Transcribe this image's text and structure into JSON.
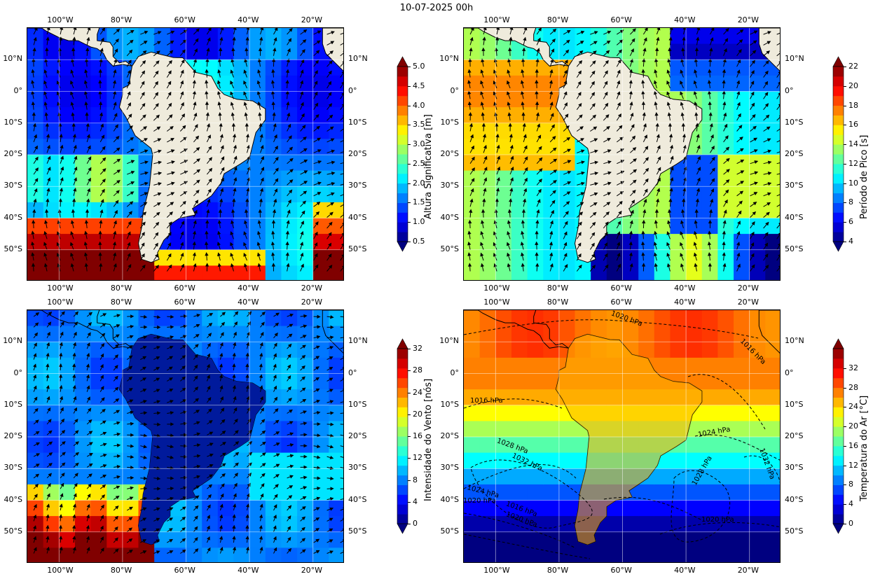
{
  "title": "10-07-2025 00h",
  "lon_ticks": [
    "100°W",
    "80°W",
    "60°W",
    "40°W",
    "20°W"
  ],
  "lat_ticks": [
    "10°N",
    "0°",
    "10°S",
    "20°S",
    "30°S",
    "40°S",
    "50°S"
  ],
  "panels": [
    {
      "id": "hs",
      "variable": "Altura Significativa [m]",
      "colorbar_ticks": [
        "0.5",
        "1.0",
        "1.5",
        "2.0",
        "2.5",
        "3.0",
        "3.5",
        "4.0",
        "4.5",
        "5.0"
      ],
      "colorbar_range": [
        0.5,
        5.0
      ],
      "colormap": "jet",
      "overlay": "wave-direction arrows"
    },
    {
      "id": "tp",
      "variable": "Período de Pico [s]",
      "colorbar_ticks": [
        "4",
        "6",
        "8",
        "10",
        "12",
        "14",
        "16",
        "18",
        "20",
        "22"
      ],
      "colorbar_range": [
        4,
        22
      ],
      "colormap": "jet",
      "overlay": "wave-direction arrows"
    },
    {
      "id": "wind",
      "variable": "Intensidade do Vento [nós]",
      "colorbar_ticks": [
        "0",
        "4",
        "8",
        "12",
        "16",
        "20",
        "24",
        "28",
        "32"
      ],
      "colorbar_range": [
        0,
        32
      ],
      "colormap": "jet",
      "overlay": "wind barbs"
    },
    {
      "id": "temp",
      "variable": "Temperatura do Ar [°C]",
      "colorbar_ticks": [
        "0",
        "4",
        "8",
        "12",
        "16",
        "20",
        "24",
        "28",
        "32"
      ],
      "colorbar_range": [
        0,
        36
      ],
      "colormap": "jet",
      "overlay": "pressure isobars",
      "contour_labels": [
        "1020 hPa",
        "1016 hPa",
        "1016 hPa",
        "1024 hPa",
        "1028 hPa",
        "1032 hPa",
        "1028 hPa",
        "1032 hPa",
        "1024 hPa",
        "1016 hPa",
        "1020 hPa",
        "1020 hPa",
        "1020 hPa"
      ]
    }
  ],
  "colors": {
    "land": "#efebdc",
    "jet": [
      "#00007f",
      "#0000ff",
      "#007fff",
      "#00ffff",
      "#7fff7f",
      "#ffff00",
      "#ff7f00",
      "#ff0000",
      "#7f0000"
    ]
  }
}
